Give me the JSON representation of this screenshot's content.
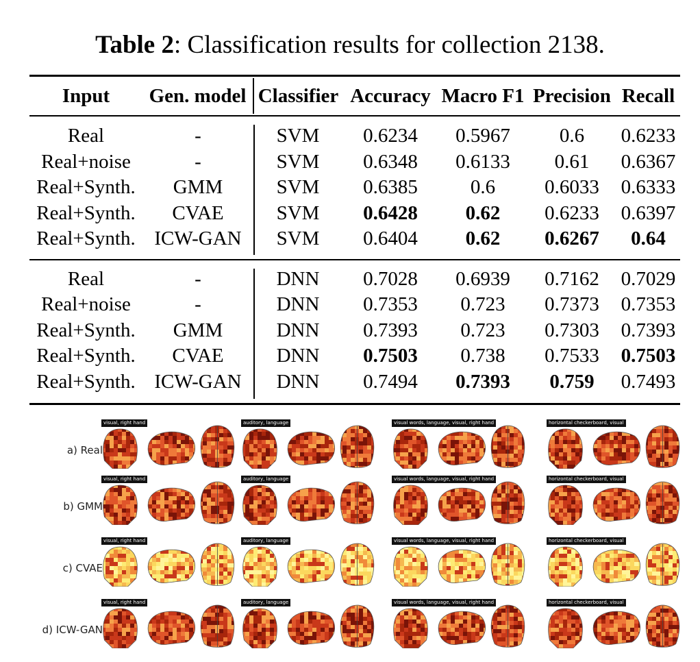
{
  "caption": {
    "label": "Table 2",
    "text": ": Classification results for collection 2138."
  },
  "table": {
    "headers": [
      "Input",
      "Gen. model",
      "Classifier",
      "Accuracy",
      "Macro F1",
      "Precision",
      "Recall"
    ],
    "groups": [
      [
        {
          "cells": [
            "Real",
            "-",
            "SVM",
            "0.6234",
            "0.5967",
            "0.6",
            "0.6233"
          ],
          "bold": []
        },
        {
          "cells": [
            "Real+noise",
            "-",
            "SVM",
            "0.6348",
            "0.6133",
            "0.61",
            "0.6367"
          ],
          "bold": []
        },
        {
          "cells": [
            "Real+Synth.",
            "GMM",
            "SVM",
            "0.6385",
            "0.6",
            "0.6033",
            "0.6333"
          ],
          "bold": []
        },
        {
          "cells": [
            "Real+Synth.",
            "CVAE",
            "SVM",
            "0.6428",
            "0.62",
            "0.6233",
            "0.6397"
          ],
          "bold": [
            3,
            4
          ]
        },
        {
          "cells": [
            "Real+Synth.",
            "ICW-GAN",
            "SVM",
            "0.6404",
            "0.62",
            "0.6267",
            "0.64"
          ],
          "bold": [
            4,
            5,
            6
          ]
        }
      ],
      [
        {
          "cells": [
            "Real",
            "-",
            "DNN",
            "0.7028",
            "0.6939",
            "0.7162",
            "0.7029"
          ],
          "bold": []
        },
        {
          "cells": [
            "Real+noise",
            "-",
            "DNN",
            "0.7353",
            "0.723",
            "0.7373",
            "0.7353"
          ],
          "bold": []
        },
        {
          "cells": [
            "Real+Synth.",
            "GMM",
            "DNN",
            "0.7393",
            "0.723",
            "0.7303",
            "0.7393"
          ],
          "bold": []
        },
        {
          "cells": [
            "Real+Synth.",
            "CVAE",
            "DNN",
            "0.7503",
            "0.738",
            "0.7533",
            "0.7503"
          ],
          "bold": [
            3,
            6
          ]
        },
        {
          "cells": [
            "Real+Synth.",
            "ICW-GAN",
            "DNN",
            "0.7494",
            "0.7393",
            "0.759",
            "0.7493"
          ],
          "bold": [
            4,
            5
          ]
        }
      ]
    ]
  },
  "figure": {
    "rows": [
      {
        "label": "a) Real",
        "palette": "dark"
      },
      {
        "label": "b) GMM",
        "palette": "dark"
      },
      {
        "label": "c) CVAE",
        "palette": "yellow"
      },
      {
        "label": "d) ICW-GAN",
        "palette": "dark"
      }
    ],
    "tags": [
      "visual, right hand",
      "auditory, language",
      "visual words, language, visual, right hand",
      "horizontal checkerboard, visual"
    ],
    "colors": {
      "hot_dark": "#8b1a0a",
      "hot_mid": "#d9481c",
      "hot_light": "#f39a3b",
      "hot_yellow": "#fbe96a"
    }
  }
}
